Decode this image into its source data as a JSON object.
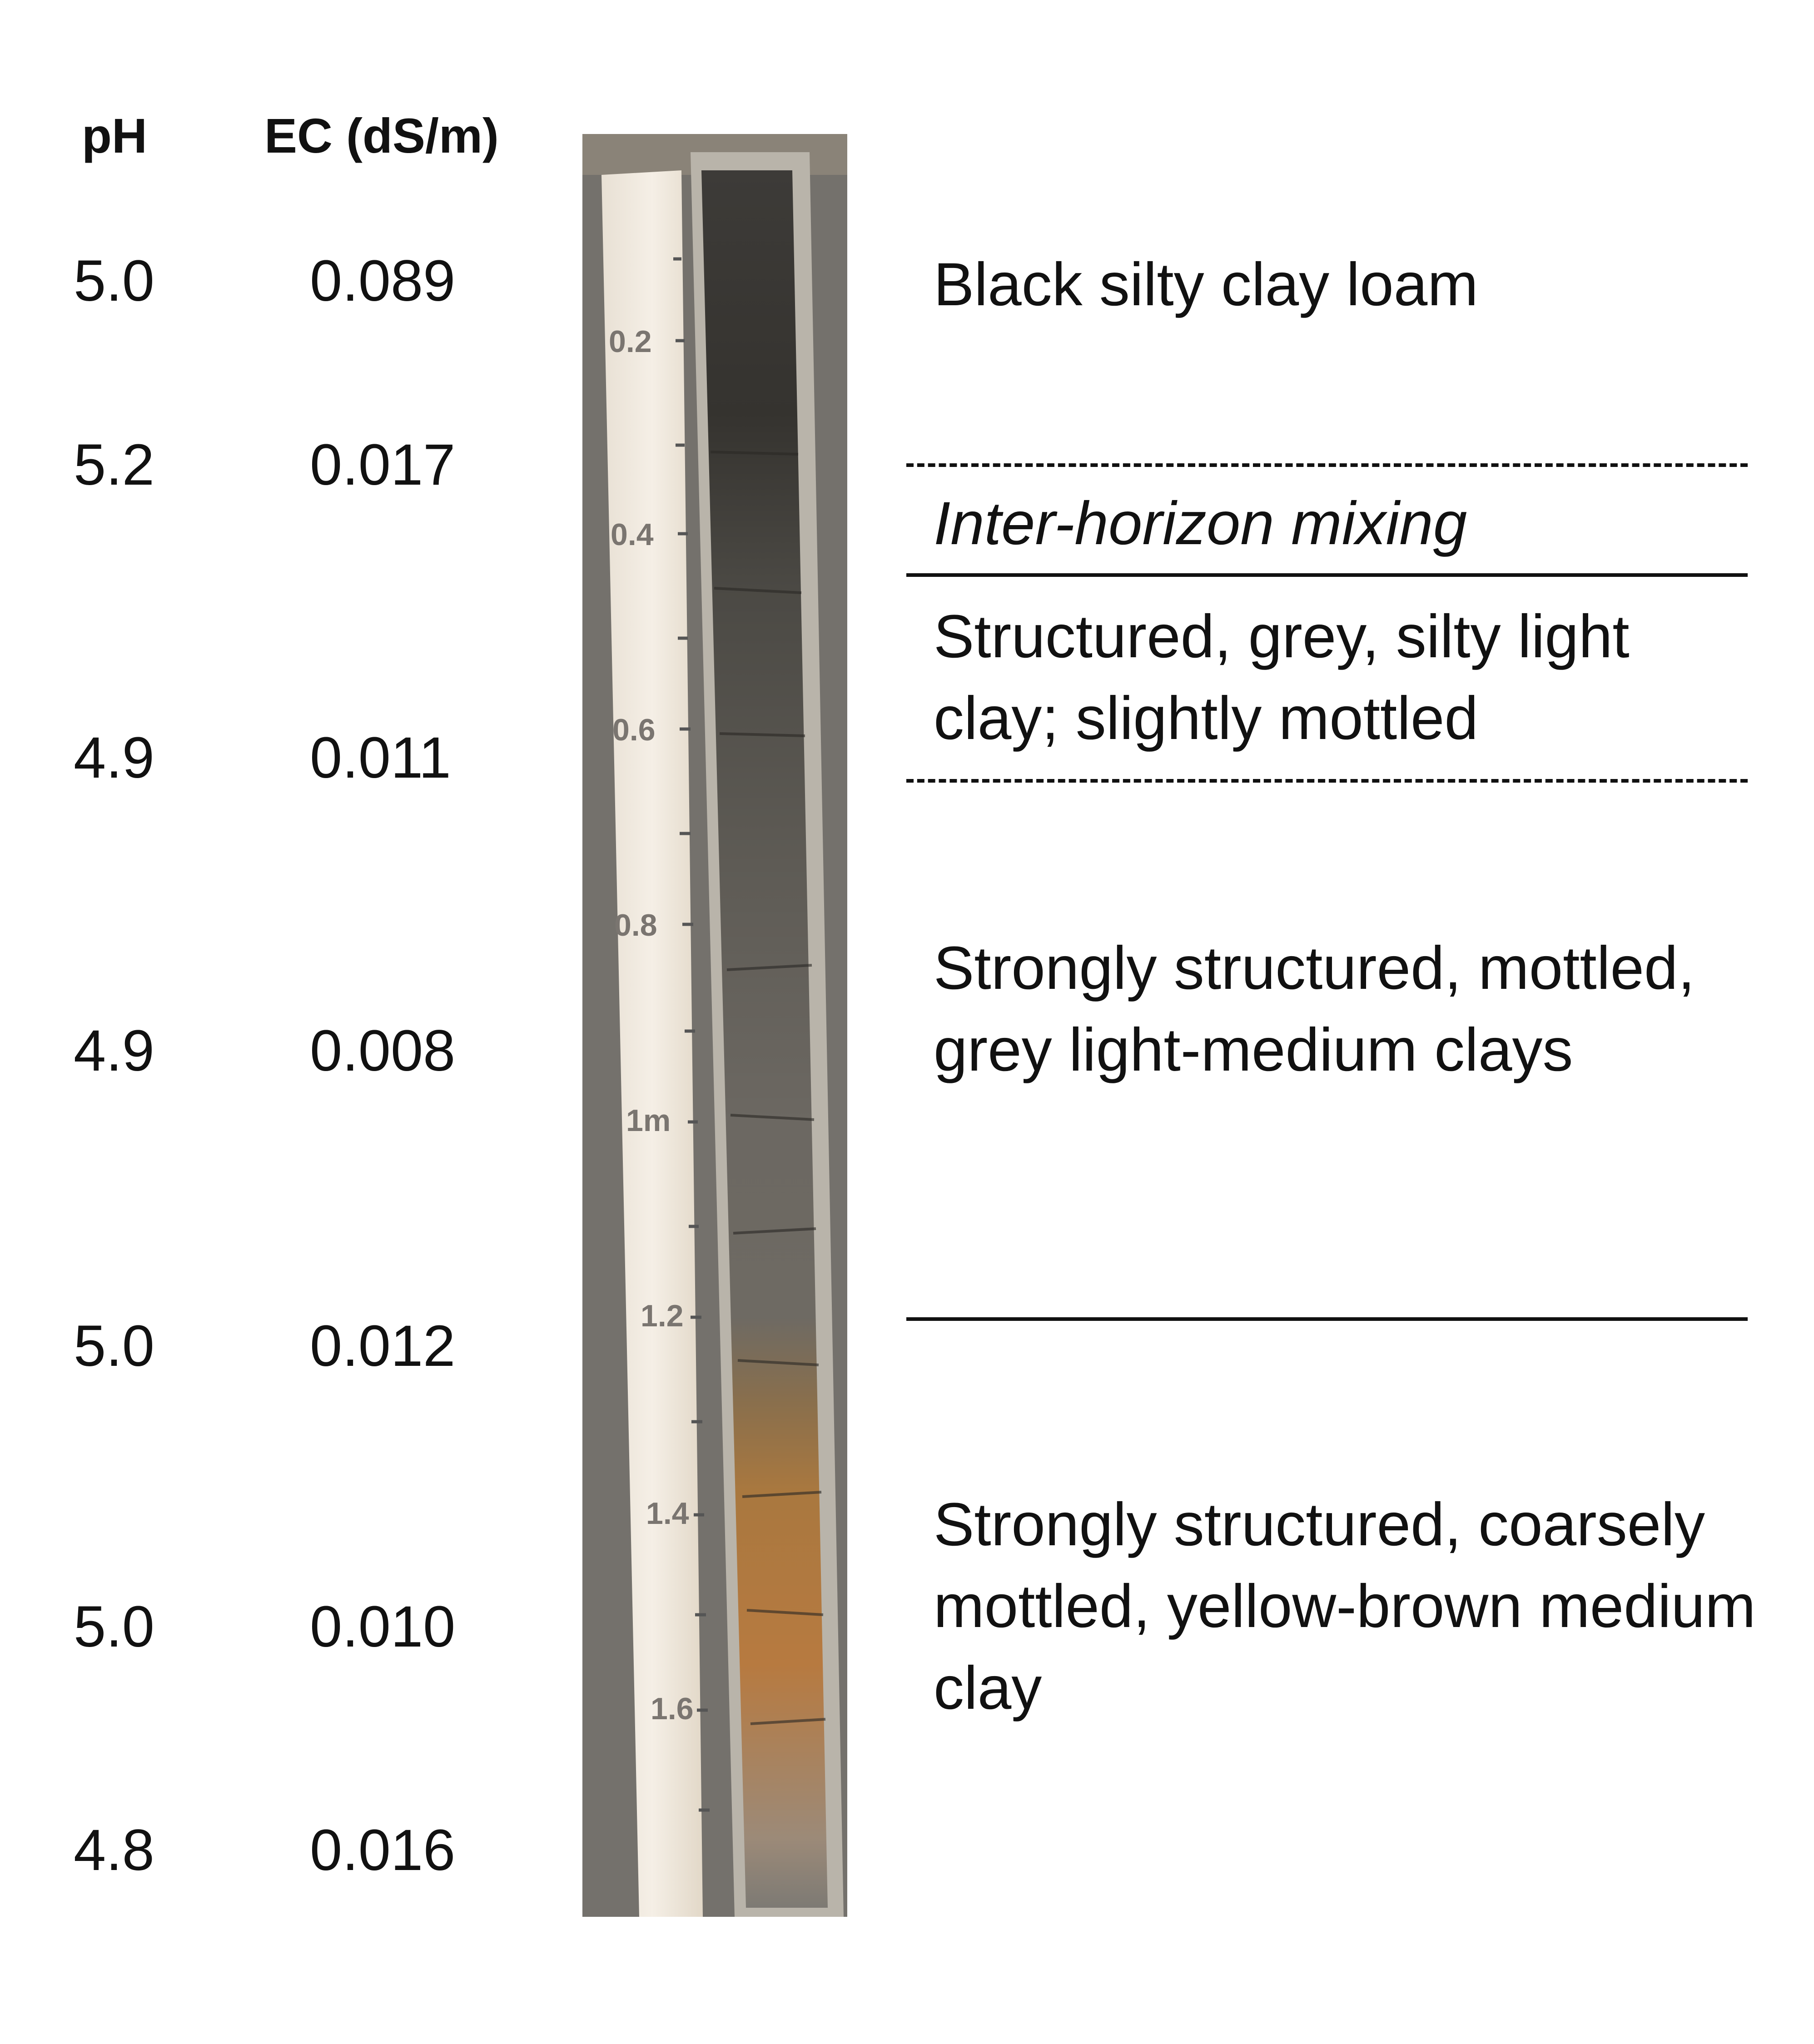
{
  "columns": {
    "ph_header": "pH",
    "ec_header": "EC (dS/m)"
  },
  "measurements": [
    {
      "ph": "5.0",
      "ec": "0.089"
    },
    {
      "ph": "5.2",
      "ec": "0.017"
    },
    {
      "ph": "4.9",
      "ec": "0.011"
    },
    {
      "ph": "4.9",
      "ec": "0.008"
    },
    {
      "ph": "5.0",
      "ec": "0.012"
    },
    {
      "ph": "5.0",
      "ec": "0.010"
    },
    {
      "ph": "4.8",
      "ec": "0.016"
    }
  ],
  "photo": {
    "scale_labels": [
      "0.2",
      "0.4",
      "0.6",
      "0.8",
      "1m",
      "1.2",
      "1.4",
      "1.6"
    ]
  },
  "horizons": [
    {
      "description": "Black silty clay loam",
      "boundary_below": "dashed"
    },
    {
      "description": "Inter-horizon mixing",
      "style": "italic",
      "boundary_below": "solid"
    },
    {
      "description": "Structured, grey, silty light clay; slightly mottled",
      "boundary_below": "dashed"
    },
    {
      "description": "Strongly structured, mottled, grey light-medium clays",
      "boundary_below": "solid"
    },
    {
      "description": "Strongly structured, coarsely mottled, yellow-brown medium clay",
      "boundary_below": "none"
    }
  ]
}
